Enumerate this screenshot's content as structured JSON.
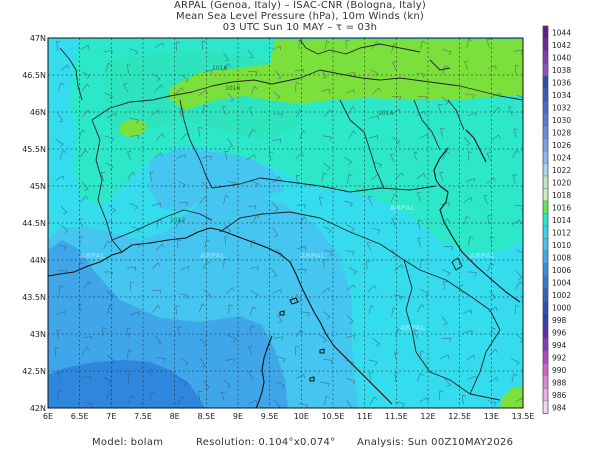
{
  "header": {
    "line1": "ARPAL (Genoa, Italy)  –  ISAC-CNR (Bologna, Italy)",
    "line2": "Mean Sea Level Pressure (hPa), 10m Winds (kn)",
    "line3": "03 UTC Sun 10 MAY  –  τ = 03h"
  },
  "footer": {
    "model": "Model: bolam",
    "resolution": "Resolution: 0.104°x0.074°",
    "analysis": "Analysis: Sun 00Z10MAY2026"
  },
  "watermark": "ARPAL",
  "chart_data": {
    "type": "heatmap",
    "x_ticks": [
      "6E",
      "6.5E",
      "7E",
      "7.5E",
      "8E",
      "8.5E",
      "9E",
      "9.5E",
      "10E",
      "10.5E",
      "11E",
      "11.5E",
      "12E",
      "12.5E",
      "13E",
      "13.5E"
    ],
    "y_ticks": [
      "47N",
      "46.5N",
      "46N",
      "45.5N",
      "45N",
      "44.5N",
      "44N",
      "43.5N",
      "43N",
      "42.5N",
      "42N"
    ],
    "x_range": [
      6,
      13.5
    ],
    "y_range": [
      42,
      47
    ],
    "isobar_labels": [
      "1016",
      "1016",
      "1014",
      "1012"
    ],
    "colorbar": {
      "levels": [
        "1044",
        "1042",
        "1040",
        "1038",
        "1036",
        "1034",
        "1032",
        "1030",
        "1028",
        "1026",
        "1024",
        "1022",
        "1020",
        "1018",
        "1016",
        "1014",
        "1012",
        "1010",
        "1008",
        "1006",
        "1004",
        "1002",
        "1000",
        "998",
        "996",
        "994",
        "992",
        "990",
        "988",
        "986",
        "984"
      ],
      "colors": [
        "#5a1e8a",
        "#6a2c9c",
        "#7c3eb0",
        "#8e52c0",
        "#2f4ca8",
        "#3a5cbc",
        "#486ccc",
        "#577cd8",
        "#6a8ce0",
        "#7ca0e8",
        "#92b4ee",
        "#a8d4ec",
        "#bfe6cc",
        "#ccf0b8",
        "#64e85a",
        "#2ce8c8",
        "#3ad4f0",
        "#48c0f0",
        "#40a8ec",
        "#3a90e0",
        "#3478d0",
        "#3064c0",
        "#2c52b4",
        "#2a44a8",
        "#5a2cae",
        "#8a3abc",
        "#b848c2",
        "#d064c8",
        "#dc88d2",
        "#e8b0de",
        "#f2d8ee"
      ]
    },
    "band_colors": {
      "b1018": "#7ce03c",
      "b1016": "#2ce8c8",
      "b1014": "#34dcee",
      "b1012": "#44c6f0",
      "b1010": "#3fa6ea",
      "b1008": "#2f86dd"
    },
    "grid": true
  }
}
